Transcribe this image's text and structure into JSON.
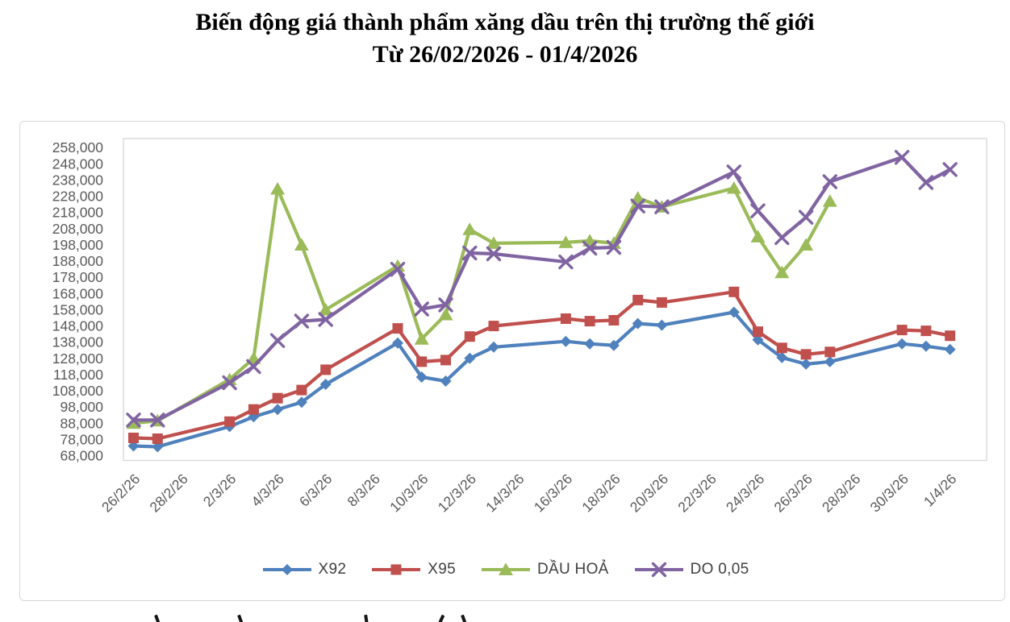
{
  "title": {
    "line1": "Biến động giá thành phẩm xăng dầu trên thị trường thế giới",
    "line2": "Từ 26/02/2026 - 01/4/2026"
  },
  "chart_data": {
    "type": "line",
    "title": "Biến động giá thành phẩm xăng dầu trên thị trường thế giới Từ 26/02/2026 - 01/4/2026",
    "xlabel": "",
    "ylabel": "",
    "grid": false,
    "legend_position": "bottom",
    "y_axis": {
      "min": 68000,
      "max": 258000,
      "step": 10000
    },
    "y_tick_labels": [
      "258,000",
      "248,000",
      "238,000",
      "228,000",
      "218,000",
      "208,000",
      "198,000",
      "188,000",
      "178,000",
      "168,000",
      "158,000",
      "148,000",
      "138,000",
      "128,000",
      "118,000",
      "108,000",
      "98,000",
      "88,000",
      "78,000",
      "68,000"
    ],
    "x_axis": {
      "unit": "days since 26/2/26",
      "range": [
        0,
        34
      ],
      "tick_interval_days": 2
    },
    "x_tick_labels": [
      "26/2/26",
      "28/2/26",
      "2/3/26",
      "4/3/26",
      "6/3/26",
      "8/3/26",
      "10/3/26",
      "12/3/26",
      "14/3/26",
      "16/3/26",
      "18/3/26",
      "20/3/26",
      "22/3/26",
      "24/3/26",
      "26/3/26",
      "28/3/26",
      "30/3/26",
      "1/4/26"
    ],
    "x_tick_day_offsets": [
      0,
      2,
      4,
      6,
      8,
      10,
      12,
      14,
      16,
      18,
      20,
      22,
      24,
      26,
      28,
      30,
      32,
      34
    ],
    "point_dates": [
      "26/2/26",
      "27/2/26",
      "2/3/26",
      "3/3/26",
      "4/3/26",
      "5/3/26",
      "6/3/26",
      "9/3/26",
      "10/3/26",
      "11/3/26",
      "12/3/26",
      "13/3/26",
      "16/3/26",
      "17/3/26",
      "18/3/26",
      "19/3/26",
      "20/3/26",
      "23/3/26",
      "24/3/26",
      "25/3/26",
      "26/3/26",
      "27/3/26",
      "30/3/26",
      "31/3/26",
      "1/4/26"
    ],
    "series": [
      {
        "name": "X92",
        "color": "#4f81bd",
        "marker": "diamond",
        "day_offsets": [
          0,
          1,
          4,
          5,
          6,
          7,
          8,
          11,
          12,
          13,
          14,
          15,
          18,
          19,
          20,
          21,
          22,
          25,
          26,
          27,
          28,
          29,
          32,
          33,
          34
        ],
        "values": [
          74000,
          73500,
          86000,
          92000,
          96500,
          101000,
          112000,
          137500,
          116500,
          114000,
          128000,
          135000,
          138500,
          137000,
          136000,
          149500,
          148500,
          156500,
          139500,
          128500,
          124500,
          126000,
          137000,
          135500,
          133500
        ]
      },
      {
        "name": "X95",
        "color": "#c0504d",
        "marker": "square",
        "day_offsets": [
          0,
          1,
          4,
          5,
          6,
          7,
          8,
          11,
          12,
          13,
          14,
          15,
          18,
          19,
          20,
          21,
          22,
          25,
          26,
          27,
          28,
          29,
          32,
          33,
          34
        ],
        "values": [
          79000,
          78500,
          89000,
          96500,
          103500,
          108500,
          121000,
          146500,
          126000,
          127000,
          141500,
          148000,
          152500,
          151000,
          151500,
          164000,
          162500,
          169000,
          144500,
          134500,
          130500,
          132000,
          145500,
          145000,
          142000
        ]
      },
      {
        "name": "DẦU HOẢ",
        "color": "#9bbb59",
        "marker": "triangle",
        "day_offsets": [
          0,
          1,
          4,
          5,
          6,
          7,
          8,
          11,
          12,
          13,
          14,
          15,
          18,
          19,
          20,
          21,
          22,
          25,
          26,
          27,
          28,
          29
        ],
        "values": [
          88000,
          89500,
          115000,
          128000,
          232500,
          198000,
          158000,
          185000,
          140000,
          155000,
          207500,
          199000,
          199500,
          200500,
          199000,
          227000,
          221500,
          233000,
          203000,
          181000,
          198000,
          225000
        ]
      },
      {
        "name": "DO 0,05",
        "color": "#8064a2",
        "marker": "x",
        "day_offsets": [
          0,
          1,
          4,
          5,
          6,
          7,
          8,
          11,
          12,
          13,
          14,
          15,
          18,
          19,
          20,
          21,
          22,
          25,
          26,
          27,
          28,
          29,
          32,
          33,
          34
        ],
        "values": [
          90000,
          90000,
          113000,
          123000,
          139000,
          151000,
          152000,
          183000,
          158500,
          161000,
          193000,
          192500,
          187500,
          196000,
          196500,
          222000,
          221500,
          243000,
          219000,
          202500,
          215000,
          237000,
          252000,
          236500,
          244500
        ]
      }
    ]
  },
  "footer": {
    "cutoff_marks": [
      {
        "x": 193,
        "tilt": -20
      },
      {
        "x": 296,
        "tilt": -20
      },
      {
        "x": 452,
        "tilt": -8
      },
      {
        "x": 545,
        "tilt": 25
      },
      {
        "x": 573,
        "tilt": -20
      }
    ]
  }
}
